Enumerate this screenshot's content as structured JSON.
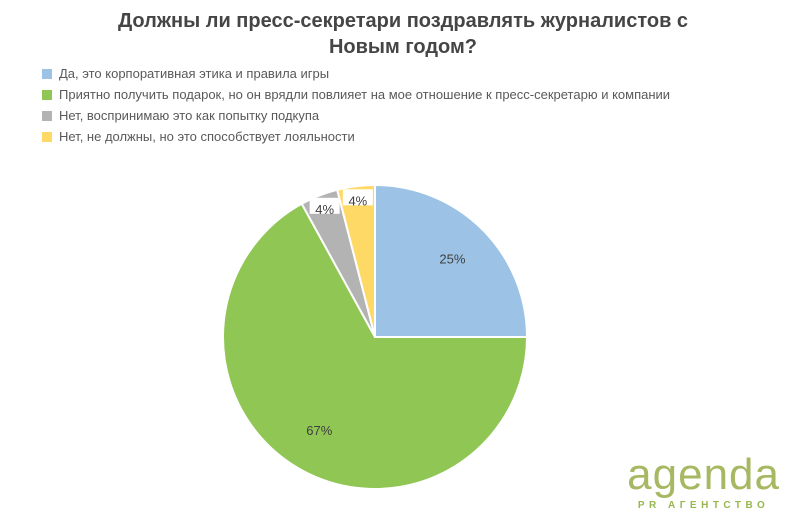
{
  "header": {
    "line1": "Должны ли пресс-секретари поздравлять журналистов с",
    "line2": "Новым годом?"
  },
  "chart_data": {
    "type": "pie",
    "title": "Должны ли пресс-секретари поздравлять журналистов с Новым годом?",
    "start_angle_deg": 0,
    "direction": "clockwise",
    "legend_position": "top-left",
    "slices": [
      {
        "label": "Да, это корпоративная этика и правила игры",
        "value": 25,
        "display": "25%",
        "color": "#9cc3e5"
      },
      {
        "label": "Приятно получить подарок, но он врядли повлияет на мое отношение к пресс-секретарю и компании",
        "value": 67,
        "display": "67%",
        "color": "#90c654"
      },
      {
        "label": "Нет, воспринимаю это как попытку подкупа",
        "value": 4,
        "display": "4%",
        "color": "#b3b3b3"
      },
      {
        "label": "Нет, не должны, но это способствует лояльности",
        "value": 4,
        "display": "4%",
        "color": "#ffd966"
      }
    ],
    "label_color": "#3f3f3f"
  },
  "logo": {
    "text": "agenda",
    "subtitle": "PR АГЕНТСТВО"
  }
}
